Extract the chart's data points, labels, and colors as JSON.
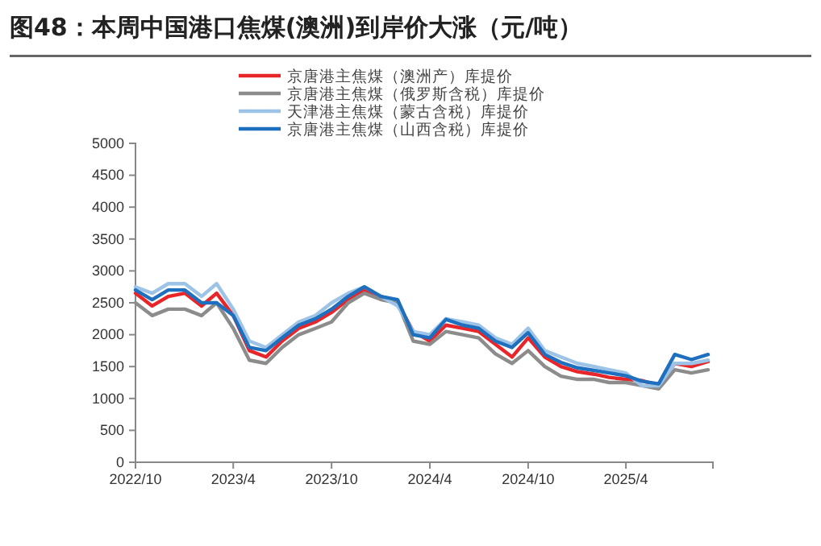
{
  "chart_data": {
    "type": "line",
    "title": "图48：本周中国港口焦煤(澳洲)到岸价大涨（元/吨）",
    "x": [
      "2022-10",
      "2022-11",
      "2022-12",
      "2023-01",
      "2023-02",
      "2023-03",
      "2023-04",
      "2023-05",
      "2023-06",
      "2023-07",
      "2023-08",
      "2023-09",
      "2023-10",
      "2023-11",
      "2023-12",
      "2024-01",
      "2024-02",
      "2024-03",
      "2024-04",
      "2024-05",
      "2024-06",
      "2024-07",
      "2024-08",
      "2024-09",
      "2024-10",
      "2024-11",
      "2024-12",
      "2025-01",
      "2025-02",
      "2025-03",
      "2025-04",
      "2025-05",
      "2025-06",
      "2025-07",
      "2025-08",
      "2025-09"
    ],
    "series": [
      {
        "name": "京唐港主焦煤（澳洲产）库提价",
        "color": "#e8262a",
        "values": [
          2650,
          2450,
          2600,
          2650,
          2450,
          2650,
          2300,
          1750,
          1650,
          1900,
          2100,
          2200,
          2350,
          2550,
          2700,
          2600,
          2500,
          2050,
          1900,
          2150,
          2100,
          2050,
          1850,
          1650,
          1950,
          1650,
          1500,
          1420,
          1380,
          1330,
          1300,
          1280,
          1200,
          1550,
          1500,
          1580
        ]
      },
      {
        "name": "京唐港主焦煤（俄罗斯含税）库提价",
        "color": "#8c8c8c",
        "values": [
          2500,
          2300,
          2400,
          2400,
          2300,
          2500,
          2100,
          1600,
          1550,
          1800,
          2000,
          2100,
          2200,
          2500,
          2650,
          2550,
          2500,
          1900,
          1850,
          2050,
          2000,
          1950,
          1700,
          1550,
          1750,
          1500,
          1350,
          1300,
          1300,
          1250,
          1250,
          1200,
          1150,
          1450,
          1400,
          1450
        ]
      },
      {
        "name": "天津港主焦煤（蒙古含税）库提价",
        "color": "#9dc3e6",
        "values": [
          2750,
          2650,
          2800,
          2800,
          2600,
          2800,
          2400,
          1900,
          1800,
          2000,
          2200,
          2300,
          2500,
          2650,
          2750,
          2600,
          2450,
          2050,
          2000,
          2250,
          2200,
          2150,
          1950,
          1850,
          2100,
          1750,
          1650,
          1550,
          1500,
          1450,
          1400,
          1200,
          1200,
          1550,
          1550,
          1600
        ]
      },
      {
        "name": "京唐港主焦煤（山西含税）库提价",
        "color": "#1f6fbf",
        "values": [
          2700,
          2550,
          2700,
          2700,
          2500,
          2500,
          2300,
          1800,
          1750,
          1950,
          2150,
          2250,
          2400,
          2600,
          2750,
          2600,
          2550,
          2000,
          1950,
          2240,
          2150,
          2100,
          1900,
          1800,
          2030,
          1690,
          1565,
          1480,
          1440,
          1400,
          1355,
          1270,
          1230,
          1690,
          1610,
          1690
        ]
      }
    ],
    "xlim": [
      "2022-10",
      "2025-09-10"
    ],
    "xticks": [
      {
        "value": "2022-10",
        "label": "2022/10"
      },
      {
        "value": "2023-04",
        "label": "2023/4"
      },
      {
        "value": "2023-10",
        "label": "2023/10"
      },
      {
        "value": "2024-04",
        "label": "2024/4"
      },
      {
        "value": "2024-10",
        "label": "2024/10"
      },
      {
        "value": "2025-04",
        "label": "2025/4"
      }
    ],
    "ylim": [
      0,
      5000
    ],
    "yticks": [
      0,
      500,
      1000,
      1500,
      2000,
      2500,
      3000,
      3500,
      4000,
      4500,
      5000
    ],
    "legend": "top",
    "grid": false,
    "line_style": "solid",
    "marker": "none"
  }
}
